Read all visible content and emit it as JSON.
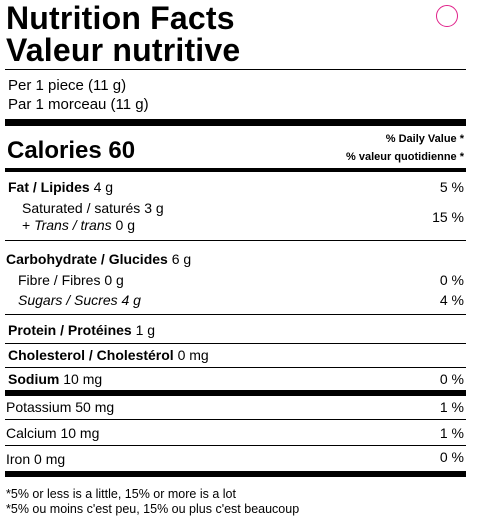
{
  "title": {
    "en": "Nutrition Facts",
    "fr": "Valeur nutritive"
  },
  "serving": {
    "en": "Per 1 piece (11 g)",
    "fr": "Par 1 morceau (11 g)"
  },
  "calories": {
    "label": "Calories",
    "value": "60"
  },
  "daily_value_header": {
    "en": "% Daily  Value *",
    "fr": "% valeur quotidienne *"
  },
  "nutrients": {
    "fat": {
      "label": "Fat / Lipides",
      "amount": "4 g",
      "dv": "5 %"
    },
    "saturated": {
      "label": "Saturated / saturés",
      "amount": "3 g"
    },
    "trans": {
      "prefix": "+ ",
      "label": "Trans / trans",
      "amount": "0 g"
    },
    "sat_trans_dv": "15 %",
    "carbohydrate": {
      "label": "Carbohydrate / Glucides",
      "amount": "6 g"
    },
    "fibre": {
      "label": "Fibre / Fibres",
      "amount": "0 g",
      "dv": "0 %"
    },
    "sugars": {
      "label": "Sugars / Sucres",
      "amount": "4 g",
      "dv": "4 %"
    },
    "protein": {
      "label": "Protein / Protéines",
      "amount": "1 g"
    },
    "cholesterol": {
      "label": "Cholesterol / Cholestérol",
      "amount": "0 mg"
    },
    "sodium": {
      "label": "Sodium",
      "amount": "10 mg",
      "dv": "0 %"
    },
    "potassium": {
      "label": "Potassium",
      "amount": "50 mg",
      "dv": "1 %"
    },
    "calcium": {
      "label": "Calcium",
      "amount": "10 mg",
      "dv": "1 %"
    },
    "iron": {
      "label": "Iron",
      "amount": "0 mg",
      "dv": "0 %"
    }
  },
  "footnote": {
    "en": "*5% or less is a little, 15% or more is a lot",
    "fr": "*5% ou moins c'est peu, 15% ou plus c'est beaucoup"
  },
  "colors": {
    "text": "#000000",
    "background": "#ffffff",
    "circle": "#e0218a"
  }
}
